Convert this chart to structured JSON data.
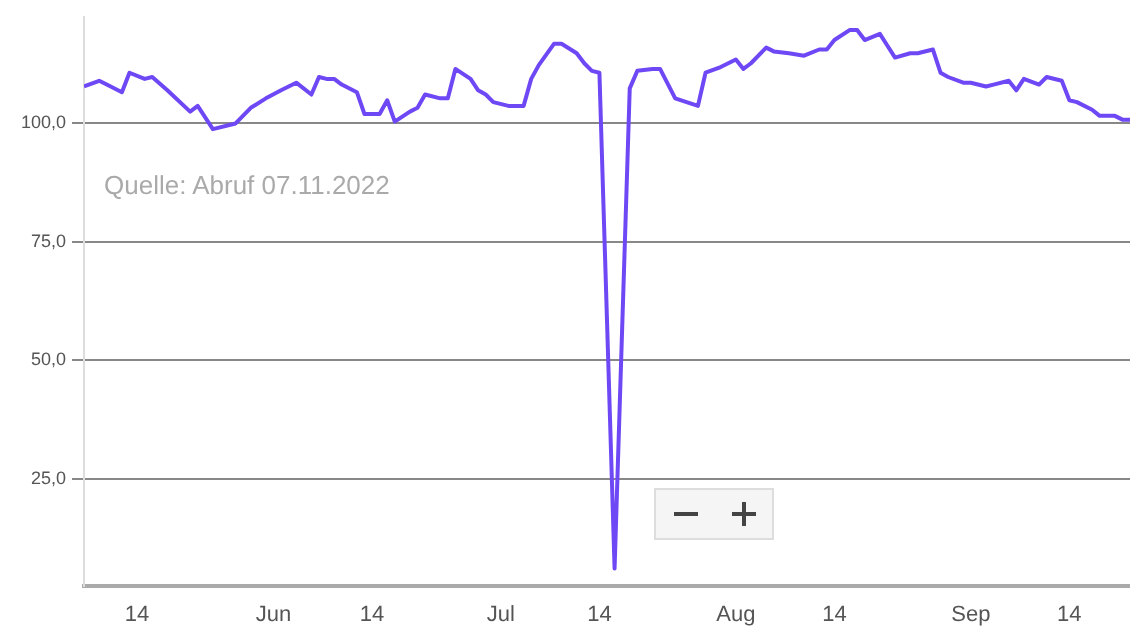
{
  "chart_data": {
    "type": "line",
    "x": [
      "2022-05-07",
      "2022-05-09",
      "2022-05-10",
      "2022-05-12",
      "2022-05-13",
      "2022-05-15",
      "2022-05-16",
      "2022-05-18",
      "2022-05-21",
      "2022-05-22",
      "2022-05-24",
      "2022-05-27",
      "2022-05-29",
      "2022-05-31",
      "2022-06-02",
      "2022-06-04",
      "2022-06-06",
      "2022-06-07",
      "2022-06-08",
      "2022-06-09",
      "2022-06-10",
      "2022-06-12",
      "2022-06-13",
      "2022-06-15",
      "2022-06-16",
      "2022-06-17",
      "2022-06-19",
      "2022-06-20",
      "2022-06-21",
      "2022-06-23",
      "2022-06-24",
      "2022-06-25",
      "2022-06-27",
      "2022-06-28",
      "2022-06-29",
      "2022-06-30",
      "2022-07-02",
      "2022-07-04",
      "2022-07-05",
      "2022-07-06",
      "2022-07-08",
      "2022-07-09",
      "2022-07-11",
      "2022-07-12",
      "2022-07-13",
      "2022-07-14",
      "2022-07-16",
      "2022-07-18",
      "2022-07-19",
      "2022-07-21",
      "2022-07-22",
      "2022-07-24",
      "2022-07-27",
      "2022-07-28",
      "2022-07-30",
      "2022-08-01",
      "2022-08-02",
      "2022-08-03",
      "2022-08-05",
      "2022-08-06",
      "2022-08-08",
      "2022-08-10",
      "2022-08-12",
      "2022-08-13",
      "2022-08-14",
      "2022-08-16",
      "2022-08-17",
      "2022-08-18",
      "2022-08-20",
      "2022-08-21",
      "2022-08-22",
      "2022-08-24",
      "2022-08-25",
      "2022-08-27",
      "2022-08-28",
      "2022-08-29",
      "2022-08-31",
      "2022-09-01",
      "2022-09-03",
      "2022-09-04",
      "2022-09-06",
      "2022-09-07",
      "2022-09-08",
      "2022-09-10",
      "2022-09-11",
      "2022-09-13",
      "2022-09-14",
      "2022-09-15",
      "2022-09-17",
      "2022-09-18",
      "2022-09-20",
      "2022-09-21",
      "2022-09-22"
    ],
    "series": [
      {
        "color": "#6f48f5",
        "values": [
          107.8,
          109.0,
          108.2,
          106.6,
          110.7,
          109.4,
          109.8,
          107.0,
          102.5,
          103.7,
          98.8,
          100.0,
          103.3,
          105.3,
          107.0,
          108.6,
          106.1,
          109.8,
          109.4,
          109.4,
          108.2,
          106.6,
          102.0,
          102.0,
          104.9,
          100.4,
          102.5,
          103.3,
          106.1,
          105.3,
          105.3,
          111.5,
          109.4,
          107.0,
          106.1,
          104.5,
          103.7,
          103.7,
          109.4,
          112.3,
          116.8,
          116.8,
          114.8,
          112.7,
          111.1,
          110.7,
          6.1,
          107.4,
          111.1,
          111.5,
          111.5,
          105.3,
          103.7,
          110.7,
          111.9,
          113.5,
          111.5,
          112.7,
          116.0,
          115.2,
          114.8,
          114.3,
          115.6,
          115.6,
          117.6,
          119.7,
          119.7,
          117.6,
          118.9,
          116.4,
          113.9,
          114.8,
          114.8,
          115.6,
          110.7,
          109.8,
          108.6,
          108.6,
          107.8,
          108.2,
          109.0,
          107.0,
          109.4,
          108.2,
          109.8,
          109.0,
          104.9,
          104.5,
          102.9,
          101.6,
          101.6,
          100.8,
          100.8
        ]
      }
    ],
    "xlim": [
      "2022-05-07",
      "2022-09-22"
    ],
    "xticks": [
      {
        "value": "2022-05-14",
        "label": "14"
      },
      {
        "value": "2022-06-01",
        "label": "Jun"
      },
      {
        "value": "2022-06-14",
        "label": "14"
      },
      {
        "value": "2022-07-01",
        "label": "Jul"
      },
      {
        "value": "2022-07-14",
        "label": "14"
      },
      {
        "value": "2022-08-01",
        "label": "Aug"
      },
      {
        "value": "2022-08-14",
        "label": "14"
      },
      {
        "value": "2022-09-01",
        "label": "Sep"
      },
      {
        "value": "2022-09-14",
        "label": "14"
      }
    ],
    "yticks": [
      {
        "value": 25,
        "label": "25,0"
      },
      {
        "value": 50,
        "label": "50,0"
      },
      {
        "value": 75,
        "label": "75,0"
      },
      {
        "value": 100,
        "label": "100,0"
      }
    ],
    "ylim": [
      2.5,
      122.5
    ],
    "grid": "y",
    "legend": false,
    "marker": "none",
    "line_style": "solid",
    "annotations": [
      "Quelle: Abruf 07.11.2022"
    ]
  }
}
